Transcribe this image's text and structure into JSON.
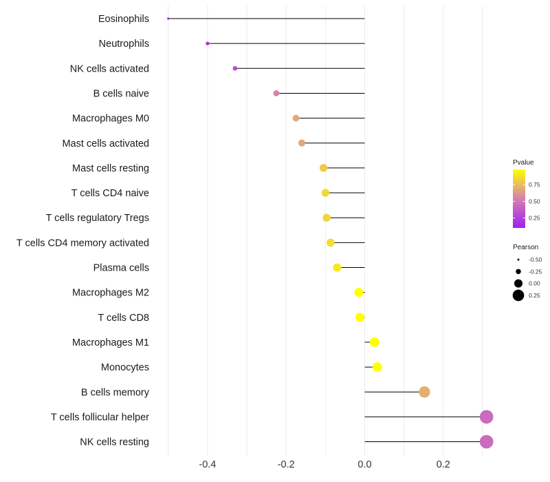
{
  "chart_data": {
    "type": "lollipop",
    "title": "",
    "xlabel": "",
    "ylabel": "",
    "xlim": [
      -0.5,
      0.31
    ],
    "x_ticks": [
      -0.4,
      -0.2,
      0.0,
      0.2
    ],
    "x_tick_labels": [
      "-0.4",
      "-0.2",
      "0.0",
      "0.2"
    ],
    "grid": true,
    "categories": [
      "Eosinophils",
      "Neutrophils",
      "NK cells activated",
      "B cells naive",
      "Macrophages M0",
      "Mast cells activated",
      "Mast cells resting",
      "T cells CD4 naive",
      "T cells regulatory  Tregs ",
      "T cells CD4 memory activated",
      "Plasma cells",
      "Macrophages M2",
      "T cells CD8",
      "Macrophages M1",
      "Monocytes",
      "B cells memory",
      "T cells follicular helper",
      "NK cells resting"
    ],
    "pearson": [
      -0.5,
      -0.4,
      -0.33,
      -0.225,
      -0.175,
      -0.16,
      -0.105,
      -0.1,
      -0.097,
      -0.087,
      -0.07,
      -0.015,
      -0.012,
      0.025,
      0.032,
      0.152,
      0.31,
      0.31
    ],
    "pvalue": [
      0.1,
      0.18,
      0.3,
      0.55,
      0.68,
      0.68,
      0.8,
      0.84,
      0.84,
      0.86,
      0.9,
      0.98,
      0.98,
      0.98,
      0.98,
      0.7,
      0.45,
      0.45
    ],
    "legends": {
      "color": {
        "title": "Pvalue",
        "ticks": [
          0.25,
          0.5,
          0.75
        ],
        "tick_labels": [
          "0.25",
          "0.50",
          "0.75"
        ],
        "range": [
          0.1,
          0.98
        ],
        "low_color": "#a020f0",
        "mid_color": "#d580b0",
        "high_color": "#ffff00"
      },
      "size": {
        "title": "Pearson",
        "values": [
          -0.5,
          -0.25,
          0.0,
          0.25
        ],
        "labels": [
          "-0.50",
          "-0.25",
          "0.00",
          "0.25"
        ]
      }
    },
    "legend_position": "right"
  }
}
